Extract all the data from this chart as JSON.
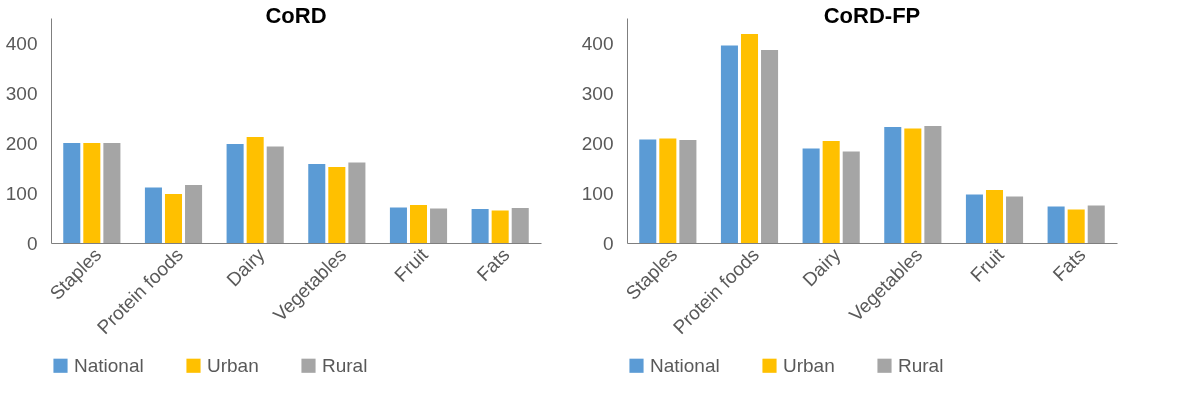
{
  "chart_data": [
    {
      "type": "bar",
      "title": "CoRD",
      "categories": [
        "Staples",
        "Protein foods",
        "Dairy",
        "Vegetables",
        "Fruit",
        "Fats"
      ],
      "series": [
        {
          "name": "National",
          "color": "#5b9bd5",
          "values": [
            200,
            111,
            198,
            158,
            71,
            68
          ]
        },
        {
          "name": "Urban",
          "color": "#ffc000",
          "values": [
            200,
            98,
            212,
            152,
            76,
            65
          ]
        },
        {
          "name": "Rural",
          "color": "#a5a5a5",
          "values": [
            200,
            116,
            193,
            161,
            69,
            70
          ]
        }
      ],
      "ylim": [
        0,
        450
      ],
      "yticks": [
        0,
        100,
        200,
        300,
        400
      ],
      "grid": false,
      "legend": "bottom"
    },
    {
      "type": "bar",
      "title": "CoRD-FP",
      "categories": [
        "Staples",
        "Protein foods",
        "Dairy",
        "Vegetables",
        "Fruit",
        "Fats"
      ],
      "series": [
        {
          "name": "National",
          "color": "#5b9bd5",
          "values": [
            207,
            395,
            189,
            232,
            97,
            73
          ]
        },
        {
          "name": "Urban",
          "color": "#ffc000",
          "values": [
            209,
            418,
            204,
            229,
            106,
            67
          ]
        },
        {
          "name": "Rural",
          "color": "#a5a5a5",
          "values": [
            206,
            386,
            183,
            234,
            93,
            75
          ]
        }
      ],
      "ylim": [
        0,
        450
      ],
      "yticks": [
        0,
        100,
        200,
        300,
        400
      ],
      "grid": false,
      "legend": "bottom"
    }
  ]
}
